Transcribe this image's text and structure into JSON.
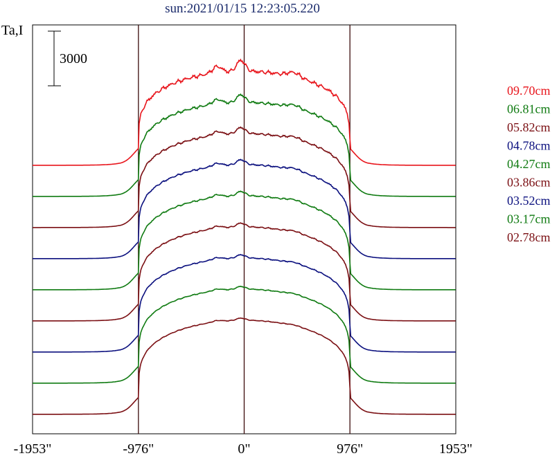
{
  "title": "sun:2021/01/15 12:23:05.220",
  "chart_data": {
    "type": "line",
    "ylabel": "Ta,I",
    "scale_bar_label": "3000",
    "x_ticks": [
      {
        "value": -1953,
        "label": "-1953\""
      },
      {
        "value": -976,
        "label": "-976\""
      },
      {
        "value": 0,
        "label": "0\""
      },
      {
        "value": 976,
        "label": "976\""
      },
      {
        "value": 1953,
        "label": "1953\""
      }
    ],
    "xlim": [
      -1953,
      1953
    ],
    "vertical_markers": [
      -976,
      0,
      976
    ],
    "series_profile_peak": 7700,
    "series": [
      {
        "name": "09.70cm",
        "color": "#e8141b",
        "offset": 16600,
        "texture": 1.0
      },
      {
        "name": "06.81cm",
        "color": "#0e7a10",
        "offset": 14050,
        "texture": 0.7
      },
      {
        "name": "05.82cm",
        "color": "#7a0e12",
        "offset": 11500,
        "texture": 0.55
      },
      {
        "name": "04.78cm",
        "color": "#0a0f7e",
        "offset": 8950,
        "texture": 0.45
      },
      {
        "name": "04.27cm",
        "color": "#0e7a10",
        "offset": 6400,
        "texture": 0.4
      },
      {
        "name": "03.86cm",
        "color": "#7a0e12",
        "offset": 3850,
        "texture": 0.35
      },
      {
        "name": "03.52cm",
        "color": "#0a0f7e",
        "offset": 1300,
        "texture": 0.3
      },
      {
        "name": "03.17cm",
        "color": "#0e7a10",
        "offset": -1250,
        "texture": 0.25
      },
      {
        "name": "02.78cm",
        "color": "#7a0e12",
        "offset": -3800,
        "texture": 0.2
      }
    ],
    "ylim": [
      -5400,
      28100
    ]
  }
}
